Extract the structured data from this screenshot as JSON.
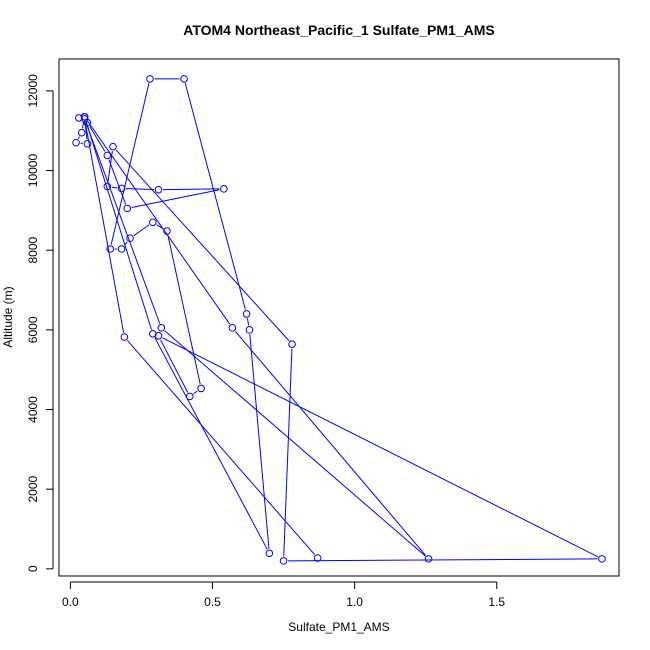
{
  "chart_data": {
    "type": "line",
    "title": "ATOM4 Northeast_Pacific_1 Sulfate_PM1_AMS",
    "xlabel": "Sulfate_PM1_AMS",
    "ylabel": "Altitude (m)",
    "xlim": [
      -0.04,
      1.93
    ],
    "ylim": [
      -180,
      12800
    ],
    "x_ticks": [
      0.0,
      0.5,
      1.0,
      1.5
    ],
    "x_tick_labels": [
      "0.0",
      "0.5",
      "1.0",
      "1.5"
    ],
    "y_ticks": [
      0,
      2000,
      4000,
      6000,
      8000,
      10000,
      12000
    ],
    "y_tick_labels": [
      "0",
      "2000",
      "4000",
      "6000",
      "8000",
      "10000",
      "12000"
    ],
    "grid": false,
    "legend": "none",
    "series_color": "#0000ff",
    "series": [
      {
        "x": [
          0.03,
          0.05,
          0.06,
          0.02,
          0.04,
          0.05,
          0.06,
          0.13,
          0.2,
          0.54,
          0.31,
          0.18,
          0.13,
          0.15,
          0.78,
          0.75,
          1.87,
          0.31,
          0.42,
          0.46,
          0.34,
          0.29,
          0.21,
          0.18,
          0.14,
          0.28,
          0.4,
          0.62,
          0.63,
          0.7,
          0.29,
          0.05,
          0.57,
          1.26,
          0.32,
          0.05,
          0.19,
          0.87
        ],
        "y": [
          11320,
          11350,
          10670,
          10700,
          10950,
          11350,
          11200,
          10380,
          9050,
          9540,
          9520,
          9550,
          9600,
          10600,
          5640,
          200,
          250,
          5850,
          4330,
          4530,
          8480,
          8700,
          8300,
          8030,
          8030,
          12300,
          12300,
          6400,
          6000,
          390,
          5900,
          11350,
          6050,
          250,
          6050,
          11300,
          5820,
          270
        ]
      }
    ]
  }
}
